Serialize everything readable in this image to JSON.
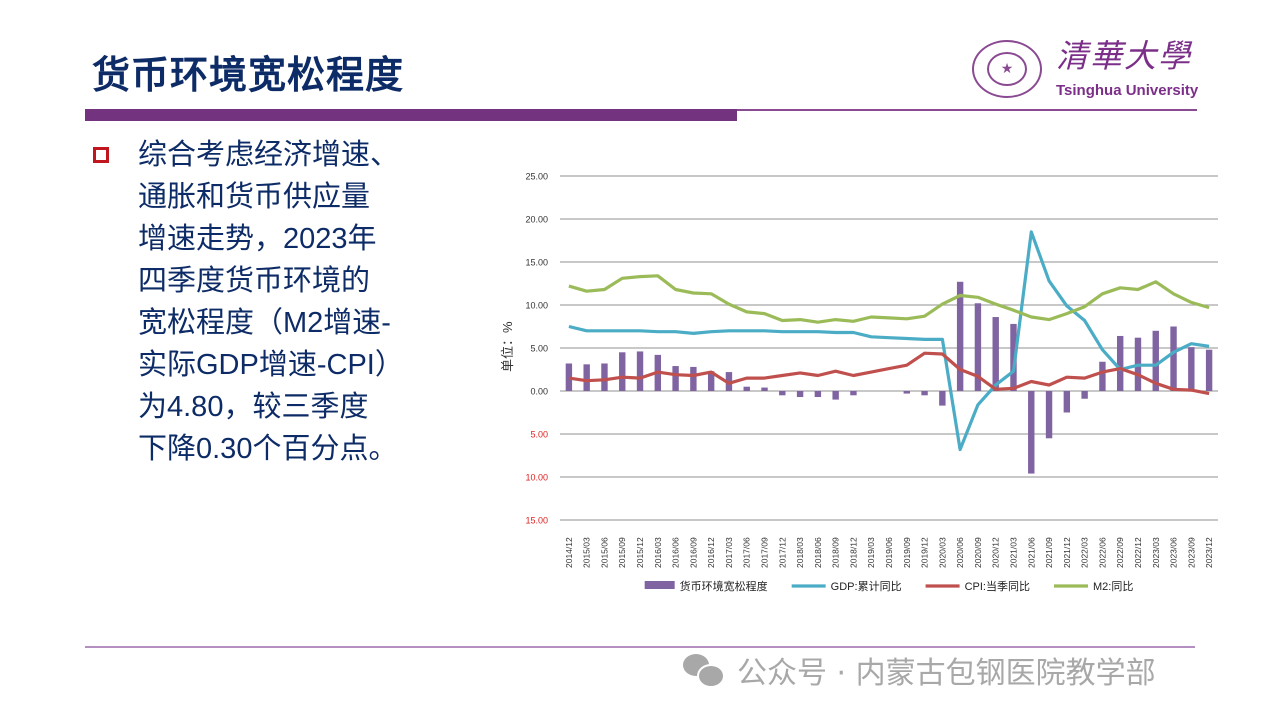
{
  "slide": {
    "title": "货币环境宽松程度",
    "bullet_text": "综合考虑经济增速、\n通胀和货币供应量\n增速走势，2023年\n四季度货币环境的\n宽松程度（M2增速-\n实际GDP增速-CPI）\n为4.80，较三季度\n下降0.30个百分点。"
  },
  "logo": {
    "cn": "清華大學",
    "en": "Tsinghua University",
    "seal_glyph": "★"
  },
  "watermark": {
    "icon": "wechat-icon",
    "text": "公众号 · 内蒙古包钢医院教学部"
  },
  "colors": {
    "title": "#0d2b66",
    "accent_purple": "#74337f",
    "bar": "#8064a2",
    "gdp": "#4bacc6",
    "cpi": "#c0504d",
    "m2": "#9bbb59",
    "negative_tick": "#e02020"
  },
  "chart_data": {
    "type": "bar+line",
    "title": "",
    "ylabel": "单位：%",
    "xlabel": "",
    "ylim": [
      -15,
      25
    ],
    "yticks": [
      25,
      20,
      15,
      10,
      5,
      0,
      -5,
      -10,
      -15
    ],
    "ytick_labels": [
      "25.00",
      "20.00",
      "15.00",
      "10.00",
      "5.00",
      "0.00",
      "5.00",
      "10.00",
      "15.00"
    ],
    "grid": true,
    "legend_position": "bottom",
    "categories": [
      "2014/12",
      "2015/03",
      "2015/06",
      "2015/09",
      "2015/12",
      "2016/03",
      "2016/06",
      "2016/09",
      "2016/12",
      "2017/03",
      "2017/06",
      "2017/09",
      "2017/12",
      "2018/03",
      "2018/06",
      "2018/09",
      "2018/12",
      "2019/03",
      "2019/06",
      "2019/09",
      "2019/12",
      "2020/03",
      "2020/06",
      "2020/09",
      "2020/12",
      "2021/03",
      "2021/06",
      "2021/09",
      "2021/12",
      "2022/03",
      "2022/06",
      "2022/09",
      "2022/12",
      "2023/03",
      "2023/06",
      "2023/09",
      "2023/12"
    ],
    "series": [
      {
        "name": "货币环境宽松程度",
        "kind": "bar",
        "values": [
          3.2,
          3.1,
          3.2,
          4.5,
          4.6,
          4.2,
          2.9,
          2.8,
          2.3,
          2.2,
          0.5,
          0.4,
          -0.5,
          -0.7,
          -0.7,
          -1.0,
          -0.5,
          0,
          0,
          -0.3,
          -0.5,
          -1.7,
          12.7,
          10.2,
          8.6,
          7.8,
          -9.6,
          -5.5,
          -2.5,
          -0.9,
          3.4,
          6.4,
          6.2,
          7.0,
          7.5,
          5.1,
          4.8
        ]
      },
      {
        "name": "GDP:累计同比",
        "kind": "line",
        "values": [
          7.5,
          7.0,
          7.0,
          7.0,
          7.0,
          6.9,
          6.9,
          6.7,
          6.9,
          7.0,
          7.0,
          7.0,
          6.9,
          6.9,
          6.9,
          6.8,
          6.8,
          6.3,
          6.2,
          6.1,
          6.0,
          6.0,
          -6.8,
          -1.6,
          0.7,
          2.3,
          18.5,
          12.8,
          9.9,
          8.2,
          4.8,
          2.5,
          3.0,
          3.0,
          4.5,
          5.5,
          5.2
        ]
      },
      {
        "name": "CPI:当季同比",
        "kind": "line",
        "values": [
          1.5,
          1.2,
          1.3,
          1.6,
          1.5,
          2.2,
          1.9,
          1.8,
          2.2,
          0.9,
          1.5,
          1.5,
          1.8,
          2.1,
          1.8,
          2.3,
          1.8,
          2.2,
          2.6,
          3.0,
          4.4,
          4.3,
          2.5,
          1.7,
          0.2,
          0.3,
          1.1,
          0.7,
          1.6,
          1.5,
          2.2,
          2.6,
          1.9,
          0.9,
          0.2,
          0.1,
          -0.3
        ]
      },
      {
        "name": "M2:同比",
        "kind": "line",
        "values": [
          12.2,
          11.6,
          11.8,
          13.1,
          13.3,
          13.4,
          11.8,
          11.4,
          11.3,
          10.1,
          9.2,
          9.0,
          8.2,
          8.3,
          8.0,
          8.3,
          8.1,
          8.6,
          8.5,
          8.4,
          8.7,
          10.1,
          11.1,
          10.9,
          10.1,
          9.4,
          8.6,
          8.3,
          9.0,
          9.8,
          11.3,
          12.0,
          11.8,
          12.7,
          11.3,
          10.3,
          9.7
        ]
      }
    ]
  }
}
